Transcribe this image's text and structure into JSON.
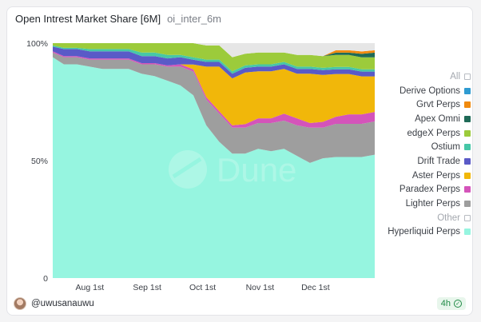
{
  "header": {
    "title": "Open Intrest Market Share [6M]",
    "subtitle": "oi_inter_6m"
  },
  "watermark": "Dune",
  "footer": {
    "author": "@uwusanauwu",
    "refresh_label": "4h"
  },
  "chart_data": {
    "type": "area",
    "stacked": true,
    "normalized": true,
    "grid": false,
    "legend_position": "right",
    "x": [
      "2025-07-12",
      "2025-07-18",
      "2025-07-25",
      "2025-08-01",
      "2025-08-08",
      "2025-08-15",
      "2025-08-22",
      "2025-08-29",
      "2025-09-05",
      "2025-09-12",
      "2025-09-19",
      "2025-09-26",
      "2025-10-03",
      "2025-10-10",
      "2025-10-17",
      "2025-10-24",
      "2025-10-31",
      "2025-11-07",
      "2025-11-14",
      "2025-11-21",
      "2025-11-28",
      "2025-12-05",
      "2025-12-12",
      "2025-12-19",
      "2025-12-26",
      "2026-01-02"
    ],
    "xticks": [
      {
        "value": "2025-08-01",
        "label": "Aug 1st"
      },
      {
        "value": "2025-09-01",
        "label": "Sep 1st"
      },
      {
        "value": "2025-10-01",
        "label": "Oct 1st"
      },
      {
        "value": "2025-11-01",
        "label": "Nov 1st"
      },
      {
        "value": "2025-12-01",
        "label": "Dec 1st"
      }
    ],
    "yticks": [
      {
        "value": 0,
        "label": "0"
      },
      {
        "value": 50,
        "label": "50%"
      },
      {
        "value": 100,
        "label": "100%"
      }
    ],
    "ylim": [
      0,
      100
    ],
    "series": [
      {
        "name": "Hyperliquid Perps",
        "color": "#96f5e0",
        "values": [
          94,
          91,
          91,
          90,
          89,
          89,
          89,
          87,
          86,
          84,
          82,
          77,
          65,
          58,
          53,
          53,
          55,
          54,
          55,
          52,
          49,
          51,
          51,
          51,
          51,
          52
        ]
      },
      {
        "name": "Lighter Perps",
        "color": "#9e9e9e",
        "values": [
          2,
          3,
          3,
          3,
          4,
          4,
          4,
          4,
          5,
          6,
          8,
          10,
          11,
          12,
          11,
          11,
          11,
          12,
          12,
          13,
          15,
          13,
          14,
          14,
          14,
          14
        ]
      },
      {
        "name": "Paradex Perps",
        "color": "#d454ba",
        "values": [
          0.5,
          0.5,
          0.5,
          0.5,
          0.5,
          0.5,
          0.5,
          0.5,
          0.5,
          0.5,
          1,
          1,
          1,
          1,
          1,
          1.5,
          2,
          2,
          3,
          3,
          2,
          2.5,
          3,
          4,
          4,
          4
        ]
      },
      {
        "name": "Aster Perps",
        "color": "#f1b70a",
        "values": [
          0,
          0,
          0,
          0,
          0,
          0,
          0,
          0,
          0,
          0,
          0,
          2,
          13,
          19,
          20,
          22,
          20,
          20,
          19,
          19,
          21,
          20,
          18,
          17,
          16,
          15
        ]
      },
      {
        "name": "Drift Trade",
        "color": "#5a5ac7",
        "values": [
          2,
          3,
          3,
          3,
          3,
          3,
          3,
          3,
          3,
          3,
          3,
          2,
          2,
          2,
          2,
          2,
          2,
          2,
          2,
          2,
          2,
          2,
          2,
          2,
          2,
          2
        ]
      },
      {
        "name": "Ostium",
        "color": "#46c7a7",
        "values": [
          0.5,
          0.5,
          0.5,
          1,
          1,
          1,
          1,
          1.5,
          1.5,
          1.5,
          1,
          1,
          1,
          1,
          1,
          1,
          1,
          1,
          1,
          1,
          1,
          1,
          1,
          1,
          1,
          1
        ]
      },
      {
        "name": "edgeX Perps",
        "color": "#9ccb3b",
        "values": [
          1,
          2,
          2,
          2.5,
          2.5,
          2.5,
          2.5,
          4,
          4,
          5,
          5,
          6,
          6,
          6,
          6,
          5,
          5,
          5,
          4,
          5,
          5,
          5,
          5,
          5,
          5,
          5
        ]
      },
      {
        "name": "Apex Omni",
        "color": "#1f6a57",
        "values": [
          0,
          0,
          0,
          0,
          0,
          0,
          0,
          0,
          0,
          0,
          0,
          0,
          0,
          0,
          0,
          0,
          0,
          0,
          0,
          0,
          0,
          0,
          1,
          1,
          1.5,
          2
        ]
      },
      {
        "name": "Grvt Perps",
        "color": "#f08a0e",
        "values": [
          0,
          0,
          0,
          0,
          0,
          0,
          0,
          0,
          0,
          0,
          0,
          0,
          0,
          0,
          0,
          0,
          0,
          0,
          0,
          0,
          0,
          0,
          1,
          1,
          1,
          1
        ]
      },
      {
        "name": "Derive Options",
        "color": "#2f9bd1",
        "values": [
          0,
          0,
          0,
          0,
          0,
          0,
          0,
          0,
          0,
          0,
          0,
          0,
          0,
          0,
          0,
          0,
          0,
          0,
          0,
          0,
          0,
          0,
          0,
          0,
          0,
          0
        ]
      },
      {
        "name": "Other",
        "color": "#e6e6e6",
        "values": [
          0,
          0,
          0,
          0,
          0,
          0,
          0,
          0,
          0,
          0,
          0,
          0,
          1,
          1,
          6,
          4.5,
          4,
          4,
          4,
          5,
          5,
          5.5,
          3,
          3,
          3.5,
          3
        ]
      }
    ],
    "legend": [
      {
        "label": "All",
        "color": "#ffffff",
        "empty": true,
        "muted": true
      },
      {
        "label": "Derive Options",
        "color": "#2f9bd1"
      },
      {
        "label": "Grvt Perps",
        "color": "#f08a0e"
      },
      {
        "label": "Apex Omni",
        "color": "#1f6a57"
      },
      {
        "label": "edgeX Perps",
        "color": "#9ccb3b"
      },
      {
        "label": "Ostium",
        "color": "#46c7a7"
      },
      {
        "label": "Drift Trade",
        "color": "#5a5ac7"
      },
      {
        "label": "Aster Perps",
        "color": "#f1b70a"
      },
      {
        "label": "Paradex Perps",
        "color": "#d454ba"
      },
      {
        "label": "Lighter Perps",
        "color": "#9e9e9e"
      },
      {
        "label": "Other",
        "color": "#ffffff",
        "empty": true,
        "muted": true
      },
      {
        "label": "Hyperliquid Perps",
        "color": "#96f5e0"
      }
    ]
  }
}
